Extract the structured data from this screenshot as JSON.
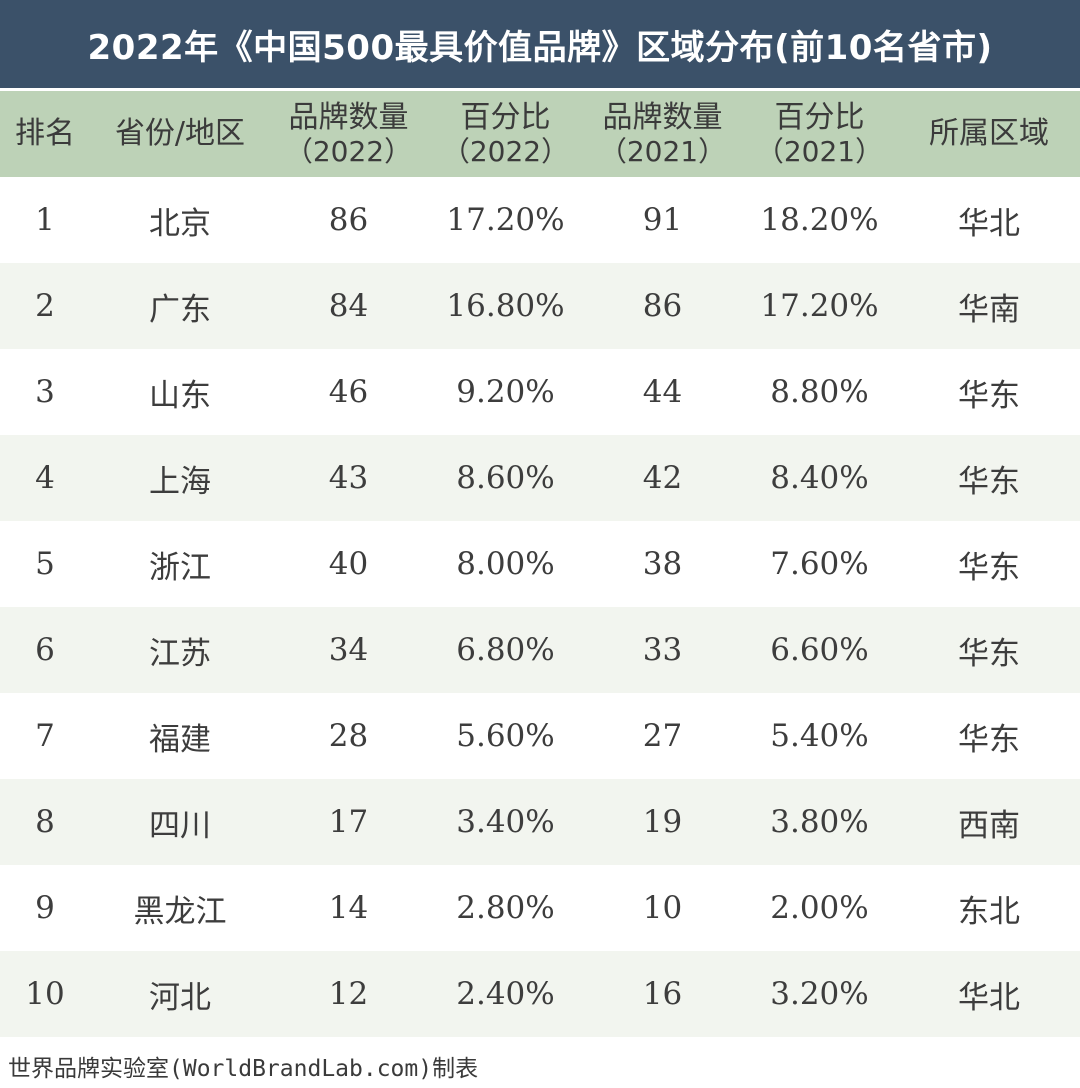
{
  "title": "2022年《中国500最具价值品牌》区域分布(前10名省市)",
  "headers": [
    {
      "main": "排名",
      "sub": ""
    },
    {
      "main": "省份/地区",
      "sub": ""
    },
    {
      "main": "品牌数量",
      "sub": "（2022）"
    },
    {
      "main": "百分比",
      "sub": "（2022）"
    },
    {
      "main": "品牌数量",
      "sub": "（2021）"
    },
    {
      "main": "百分比",
      "sub": "（2021）"
    },
    {
      "main": "所属区域",
      "sub": ""
    }
  ],
  "rows": [
    {
      "rank": "1",
      "region": "北京",
      "count_2022": "86",
      "pct_2022": "17.20%",
      "count_2021": "91",
      "pct_2021": "18.20%",
      "area": "华北"
    },
    {
      "rank": "2",
      "region": "广东",
      "count_2022": "84",
      "pct_2022": "16.80%",
      "count_2021": "86",
      "pct_2021": "17.20%",
      "area": "华南"
    },
    {
      "rank": "3",
      "region": "山东",
      "count_2022": "46",
      "pct_2022": "9.20%",
      "count_2021": "44",
      "pct_2021": "8.80%",
      "area": "华东"
    },
    {
      "rank": "4",
      "region": "上海",
      "count_2022": "43",
      "pct_2022": "8.60%",
      "count_2021": "42",
      "pct_2021": "8.40%",
      "area": "华东"
    },
    {
      "rank": "5",
      "region": "浙江",
      "count_2022": "40",
      "pct_2022": "8.00%",
      "count_2021": "38",
      "pct_2021": "7.60%",
      "area": "华东"
    },
    {
      "rank": "6",
      "region": "江苏",
      "count_2022": "34",
      "pct_2022": "6.80%",
      "count_2021": "33",
      "pct_2021": "6.60%",
      "area": "华东"
    },
    {
      "rank": "7",
      "region": "福建",
      "count_2022": "28",
      "pct_2022": "5.60%",
      "count_2021": "27",
      "pct_2021": "5.40%",
      "area": "华东"
    },
    {
      "rank": "8",
      "region": "四川",
      "count_2022": "17",
      "pct_2022": "3.40%",
      "count_2021": "19",
      "pct_2021": "3.80%",
      "area": "西南"
    },
    {
      "rank": "9",
      "region": "黑龙江",
      "count_2022": "14",
      "pct_2022": "2.80%",
      "count_2021": "10",
      "pct_2021": "2.00%",
      "area": "东北"
    },
    {
      "rank": "10",
      "region": "河北",
      "count_2022": "12",
      "pct_2022": "2.40%",
      "count_2021": "16",
      "pct_2021": "3.20%",
      "area": "华北"
    }
  ],
  "footer": "世界品牌实验室(WorldBrandLab.com)制表",
  "colors": {
    "title_bg": "#3b5169",
    "header_bg": "#bdd2b7",
    "alt_row_bg": "#f2f5ef"
  }
}
